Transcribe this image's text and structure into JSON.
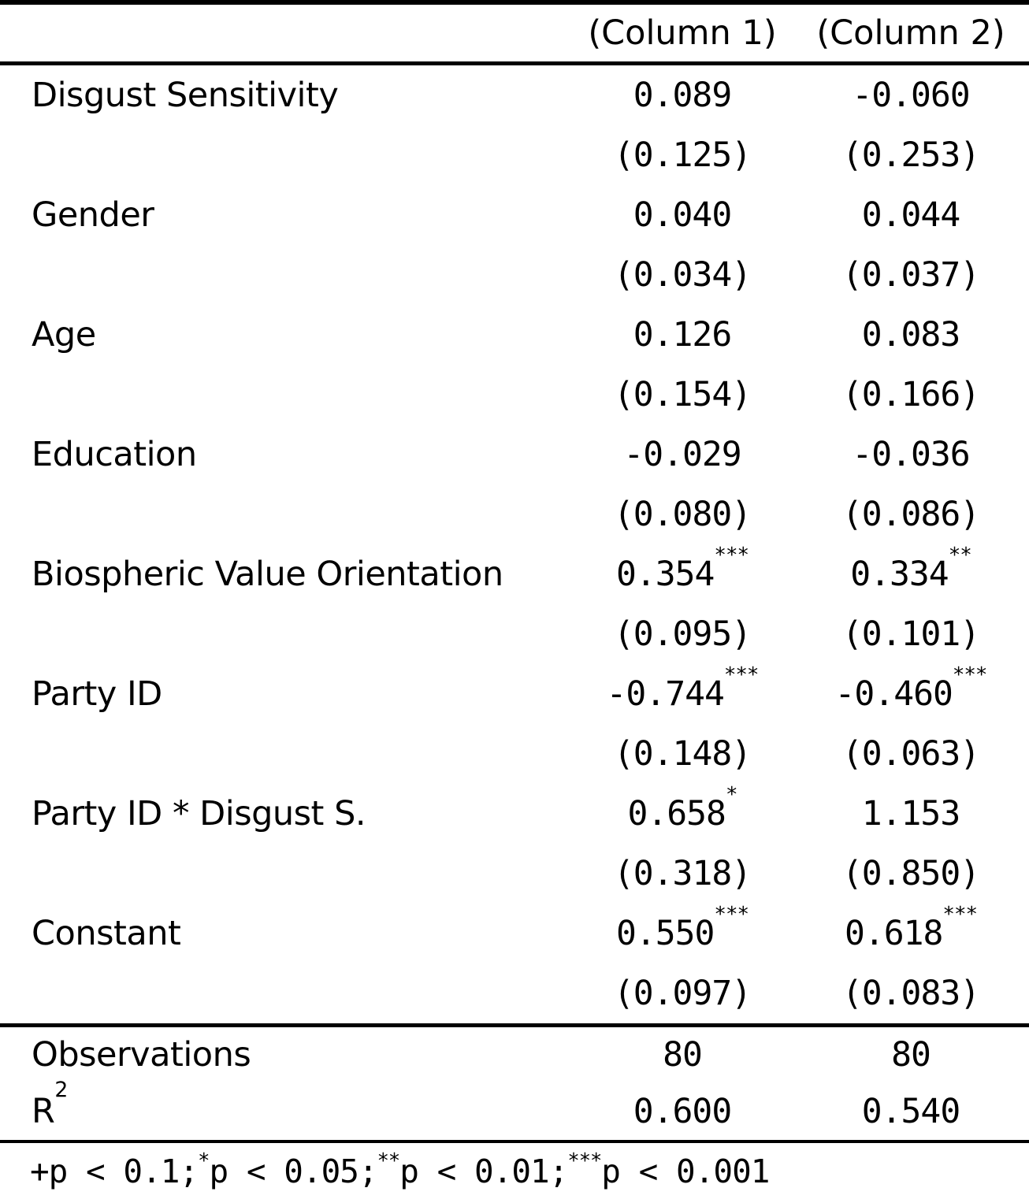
{
  "table": {
    "header": {
      "col1": "(Column 1)",
      "col2": "(Column 2)"
    },
    "rows": [
      {
        "label": "Disgust Sensitivity",
        "col1": {
          "value": "0.089",
          "stars": "",
          "se": "(0.125)"
        },
        "col2": {
          "value": "-0.060",
          "stars": "",
          "se": "(0.253)"
        }
      },
      {
        "label": "Gender",
        "col1": {
          "value": "0.040",
          "stars": "",
          "se": "(0.034)"
        },
        "col2": {
          "value": "0.044",
          "stars": "",
          "se": "(0.037)"
        }
      },
      {
        "label": "Age",
        "col1": {
          "value": "0.126",
          "stars": "",
          "se": "(0.154)"
        },
        "col2": {
          "value": "0.083",
          "stars": "",
          "se": "(0.166)"
        }
      },
      {
        "label": "Education",
        "col1": {
          "value": "-0.029",
          "stars": "",
          "se": "(0.080)"
        },
        "col2": {
          "value": "-0.036",
          "stars": "",
          "se": "(0.086)"
        }
      },
      {
        "label": "Biospheric Value Orientation",
        "col1": {
          "value": "0.354",
          "stars": "***",
          "se": "(0.095)"
        },
        "col2": {
          "value": "0.334",
          "stars": "**",
          "se": "(0.101)"
        }
      },
      {
        "label": "Party ID",
        "col1": {
          "value": "-0.744",
          "stars": "***",
          "se": "(0.148)"
        },
        "col2": {
          "value": "-0.460",
          "stars": "***",
          "se": "(0.063)"
        }
      },
      {
        "label": "Party ID * Disgust S.",
        "col1": {
          "value": "0.658",
          "stars": "*",
          "se": "(0.318)"
        },
        "col2": {
          "value": "1.153",
          "stars": "",
          "se": "(0.850)"
        }
      },
      {
        "label": "Constant",
        "col1": {
          "value": "0.550",
          "stars": "***",
          "se": "(0.097)"
        },
        "col2": {
          "value": "0.618",
          "stars": "***",
          "se": "(0.083)"
        }
      }
    ],
    "summary": [
      {
        "label": "Observations",
        "col1": "80",
        "col2": "80"
      },
      {
        "label": "R",
        "label_sup": "2",
        "col1": "0.600",
        "col2": "0.540"
      }
    ],
    "note": {
      "part1": "+p < 0.1;",
      "star1": "*",
      "part2": "p < 0.05;",
      "star2": "**",
      "part3": "p < 0.01;",
      "star3": "***",
      "part4": "p < 0.001"
    }
  }
}
